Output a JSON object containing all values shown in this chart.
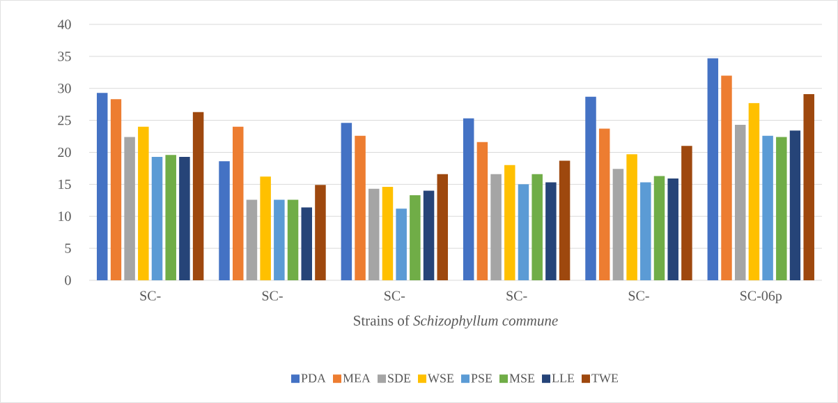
{
  "chart_data": {
    "type": "bar",
    "xlabel": "Strains of *Schizophyllum commune*",
    "categories": [
      "SC-",
      "SC-",
      "SC-",
      "SC-",
      "SC-",
      "SC-06p"
    ],
    "ylim": [
      0,
      40
    ],
    "yticks": [
      0,
      5,
      10,
      15,
      20,
      25,
      30,
      35,
      40
    ],
    "grid": "y",
    "legend": "bottom",
    "series": [
      {
        "name": "PDA",
        "color": "#4472c4",
        "values": [
          29.3,
          18.6,
          24.6,
          25.3,
          28.7,
          34.7
        ]
      },
      {
        "name": "MEA",
        "color": "#ed7d31",
        "values": [
          28.3,
          24.0,
          22.6,
          21.6,
          23.7,
          32.0
        ]
      },
      {
        "name": "SDE",
        "color": "#a5a5a5",
        "values": [
          22.4,
          12.6,
          14.3,
          16.6,
          17.4,
          24.3
        ]
      },
      {
        "name": "WSE",
        "color": "#ffc000",
        "values": [
          24.0,
          16.2,
          14.6,
          18.0,
          19.7,
          27.7
        ]
      },
      {
        "name": "PSE",
        "color": "#5b9bd5",
        "values": [
          19.3,
          12.6,
          11.2,
          15.0,
          15.3,
          22.6
        ]
      },
      {
        "name": "MSE",
        "color": "#70ad47",
        "values": [
          19.6,
          12.6,
          13.3,
          16.6,
          16.3,
          22.4
        ]
      },
      {
        "name": "LLE",
        "color": "#264478",
        "values": [
          19.3,
          11.4,
          14.0,
          15.3,
          15.9,
          23.4
        ]
      },
      {
        "name": "TWE",
        "color": "#9e480e",
        "values": [
          26.3,
          14.9,
          16.6,
          18.7,
          21.0,
          29.1
        ]
      }
    ]
  }
}
